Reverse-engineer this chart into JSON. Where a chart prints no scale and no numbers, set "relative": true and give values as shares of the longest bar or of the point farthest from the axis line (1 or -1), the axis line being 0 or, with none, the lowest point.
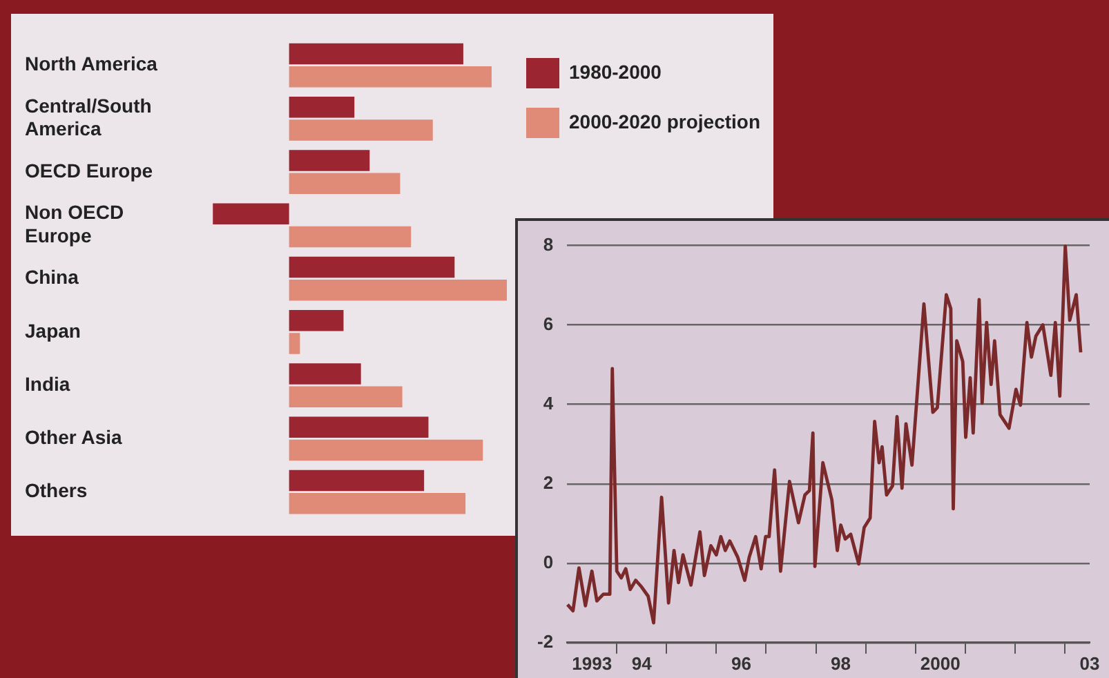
{
  "chart_data": [
    {
      "type": "bar",
      "orientation": "horizontal",
      "relative": true,
      "legend": "top right",
      "categories": [
        "North America",
        "Central/South America",
        "OECD Europe",
        "Non OECD Europe",
        "China",
        "Japan",
        "India",
        "Other Asia",
        "Others"
      ],
      "series": [
        {
          "name": "1980-2000",
          "color": "#9b2530",
          "values": [
            0.8,
            0.3,
            0.37,
            -0.35,
            0.76,
            0.25,
            0.33,
            0.64,
            0.62
          ]
        },
        {
          "name": "2000-2020 projection",
          "color": "#e08a78",
          "values": [
            0.93,
            0.66,
            0.51,
            0.56,
            1,
            0.05,
            0.52,
            0.89,
            0.81
          ]
        }
      ]
    },
    {
      "type": "line",
      "grid": "y",
      "legend": false,
      "marker": "none",
      "line_style": "solid",
      "x": [
        1992.51,
        1992.62,
        1992.74,
        1992.87,
        1993,
        1993.1,
        1993.23,
        1993.36,
        1993.41,
        1993.5,
        1993.59,
        1993.68,
        1993.77,
        1993.88,
        1994,
        1994.13,
        1994.24,
        1994.4,
        1994.54,
        1994.65,
        1994.74,
        1994.83,
        1994.99,
        1995.17,
        1995.26,
        1995.39,
        1995.5,
        1995.59,
        1995.68,
        1995.77,
        1995.93,
        1996.07,
        1996.16,
        1996.29,
        1996.4,
        1996.49,
        1996.56,
        1996.67,
        1996.79,
        1996.97,
        1997.15,
        1997.28,
        1997.37,
        1997.44,
        1997.48,
        1997.64,
        1997.82,
        1997.93,
        1998,
        1998.09,
        1998.2,
        1998.36,
        1998.47,
        1998.59,
        1998.68,
        1998.77,
        1998.83,
        1998.92,
        1999.04,
        1999.13,
        1999.23,
        1999.31,
        1999.43,
        1999.67,
        1999.85,
        1999.94,
        2000.12,
        2000.21,
        2000.26,
        2000.33,
        2000.45,
        2000.51,
        2000.6,
        2000.66,
        2000.78,
        2000.84,
        2000.93,
        2001.02,
        2001.09,
        2001.2,
        2001.38,
        2001.52,
        2001.61,
        2001.74,
        2001.83,
        2001.92,
        2002.06,
        2002.22,
        2002.31,
        2002.4,
        2002.51,
        2002.6,
        2002.73,
        2002.82
      ],
      "series": [
        {
          "color": "#7a2a2a",
          "values": [
            -1.04,
            -1.2,
            -0.12,
            -1.07,
            -0.2,
            -0.95,
            -0.78,
            -0.78,
            4.9,
            -0.2,
            -0.37,
            -0.14,
            -0.66,
            -0.43,
            -0.6,
            -0.83,
            -1.5,
            1.66,
            -1,
            0.32,
            -0.49,
            0.21,
            -0.55,
            0.79,
            -0.31,
            0.44,
            0.21,
            0.67,
            0.32,
            0.56,
            0.15,
            -0.43,
            0.15,
            0.67,
            -0.14,
            0.67,
            0.67,
            2.35,
            -0.2,
            2.06,
            1.02,
            1.72,
            1.83,
            3.28,
            -0.08,
            2.53,
            1.6,
            0.32,
            0.96,
            0.61,
            0.73,
            -0.02,
            0.9,
            1.14,
            3.57,
            2.53,
            2.93,
            1.72,
            1.95,
            3.69,
            1.89,
            3.51,
            2.47,
            6.53,
            3.8,
            3.92,
            6.76,
            6.41,
            1.37,
            5.6,
            5.08,
            3.17,
            4.67,
            3.28,
            6.64,
            4.03,
            6.06,
            4.5,
            5.6,
            3.74,
            3.4,
            4.38,
            3.98,
            6.06,
            5.19,
            5.72,
            6,
            4.73,
            6.06,
            4.21,
            7.98,
            6.12,
            6.76,
            5.31
          ]
        }
      ],
      "xlim": [
        1992.5,
        2003
      ],
      "xticks": [
        1993,
        {
          "value": 1993.5,
          "label": null
        },
        {
          "value": 1994,
          "label": "94"
        },
        {
          "value": 1994.5,
          "label": null
        },
        {
          "value": 1995.5,
          "label": null
        },
        {
          "value": 1996,
          "label": "96"
        },
        {
          "value": 1996.5,
          "label": null
        },
        {
          "value": 1997.5,
          "label": null
        },
        {
          "value": 1998,
          "label": "98"
        },
        {
          "value": 1998.5,
          "label": null
        },
        {
          "value": 1999.5,
          "label": null
        },
        2000,
        {
          "value": 2000.5,
          "label": null
        },
        {
          "value": 2001.5,
          "label": null
        },
        {
          "value": 2002.5,
          "label": null
        },
        {
          "value": 2003,
          "label": "03"
        }
      ],
      "ylim": [
        -2,
        8
      ],
      "yticks": [
        -2,
        0,
        2,
        4,
        6,
        8
      ]
    }
  ]
}
